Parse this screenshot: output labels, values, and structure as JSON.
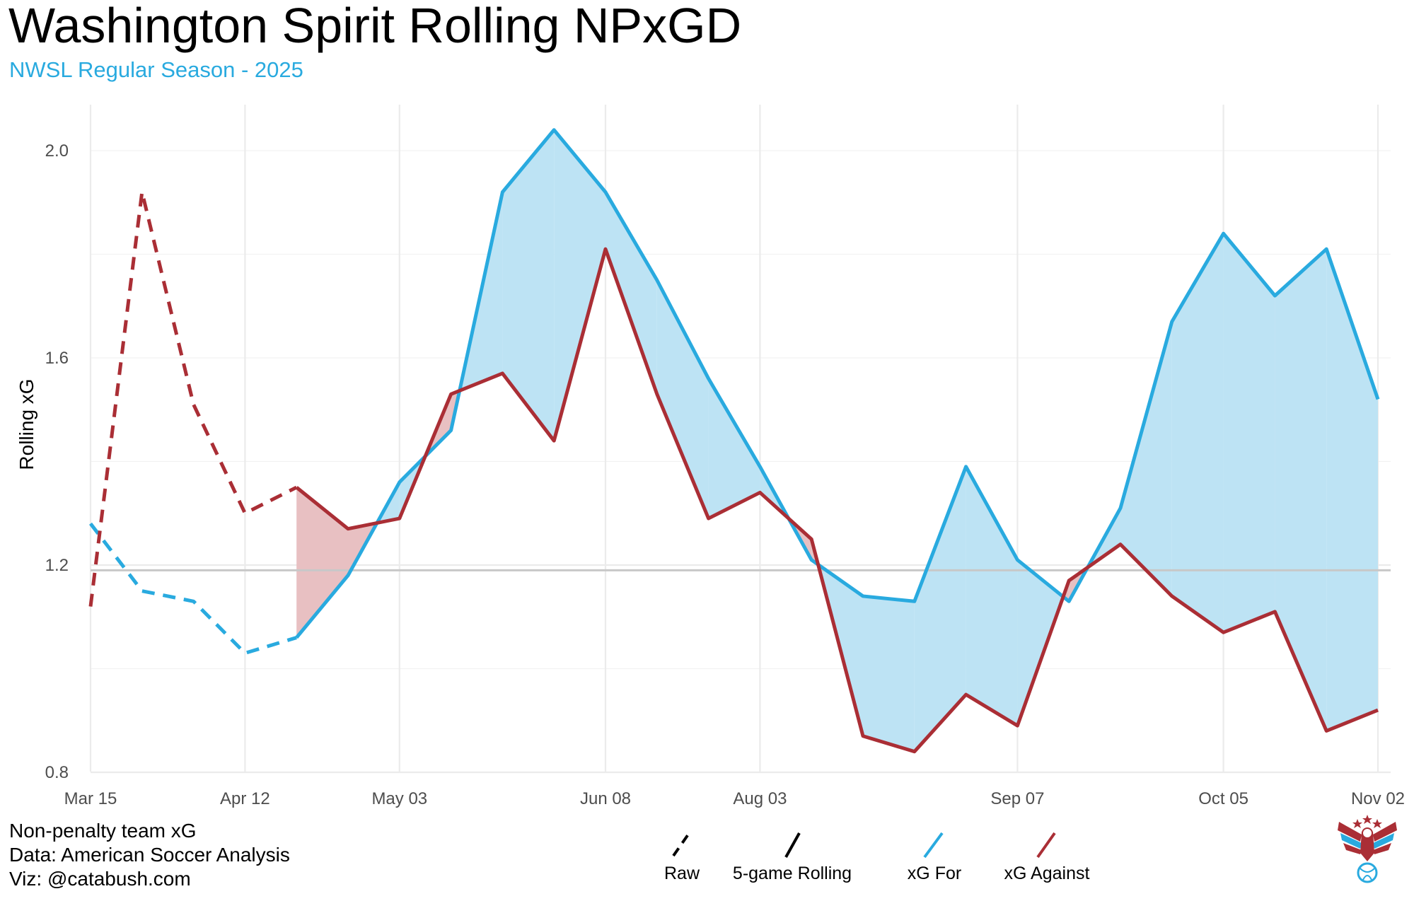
{
  "chart_data": {
    "type": "line",
    "title": "Washington Spirit Rolling NPxGD",
    "subtitle": "NWSL Regular Season - 2025",
    "ylabel": "Rolling xG",
    "xlabel": "",
    "ylim": [
      0.78,
      2.08
    ],
    "yticks": [
      0.8,
      1.2,
      1.6,
      2.0
    ],
    "ytick_labels": [
      "0.8",
      "1.2",
      "1.6",
      "2.0"
    ],
    "xlim": [
      0,
      25.3
    ],
    "xticks": [
      0,
      3,
      6,
      10,
      13,
      18,
      22,
      25
    ],
    "xtick_labels": [
      "Mar 15",
      "Apr 12",
      "May 03",
      "Jun 08",
      "Aug 03",
      "Sep 07",
      "Oct 05",
      "Nov 02"
    ],
    "reference_line": 1.19,
    "grid": true,
    "x": [
      0,
      1,
      2,
      3,
      4,
      5,
      6,
      7,
      8,
      9,
      10,
      11,
      12,
      13,
      14,
      15,
      16,
      17,
      18,
      19,
      20,
      21,
      22,
      23,
      24,
      25
    ],
    "series": [
      {
        "name": "xG For",
        "color": "#29aadf",
        "values": [
          1.28,
          1.15,
          1.13,
          1.03,
          1.06,
          1.18,
          1.36,
          1.46,
          1.92,
          2.04,
          1.92,
          1.75,
          1.56,
          1.39,
          1.21,
          1.14,
          1.13,
          1.39,
          1.21,
          1.13,
          1.31,
          1.67,
          1.84,
          1.72,
          1.81,
          1.52
        ]
      },
      {
        "name": "xG Against",
        "color": "#aa2e35",
        "values": [
          1.12,
          1.92,
          1.51,
          1.3,
          1.35,
          1.27,
          1.29,
          1.53,
          1.57,
          1.44,
          1.81,
          1.53,
          1.29,
          1.34,
          1.25,
          0.87,
          0.84,
          0.95,
          0.89,
          1.17,
          1.24,
          1.14,
          1.07,
          1.11,
          0.88,
          0.92
        ]
      }
    ],
    "raw_segment_end_index": 4,
    "legend": {
      "position": "bottom",
      "linetype_items": [
        "Raw",
        "5-game Rolling"
      ],
      "color_items": [
        "xG For",
        "xG Against"
      ]
    }
  },
  "caption": {
    "line1": "Non-penalty team xG",
    "line2": "Data: American Soccer Analysis",
    "line3": "Viz: @catabush.com"
  },
  "logo_icon": "eagle-soccer-logo"
}
